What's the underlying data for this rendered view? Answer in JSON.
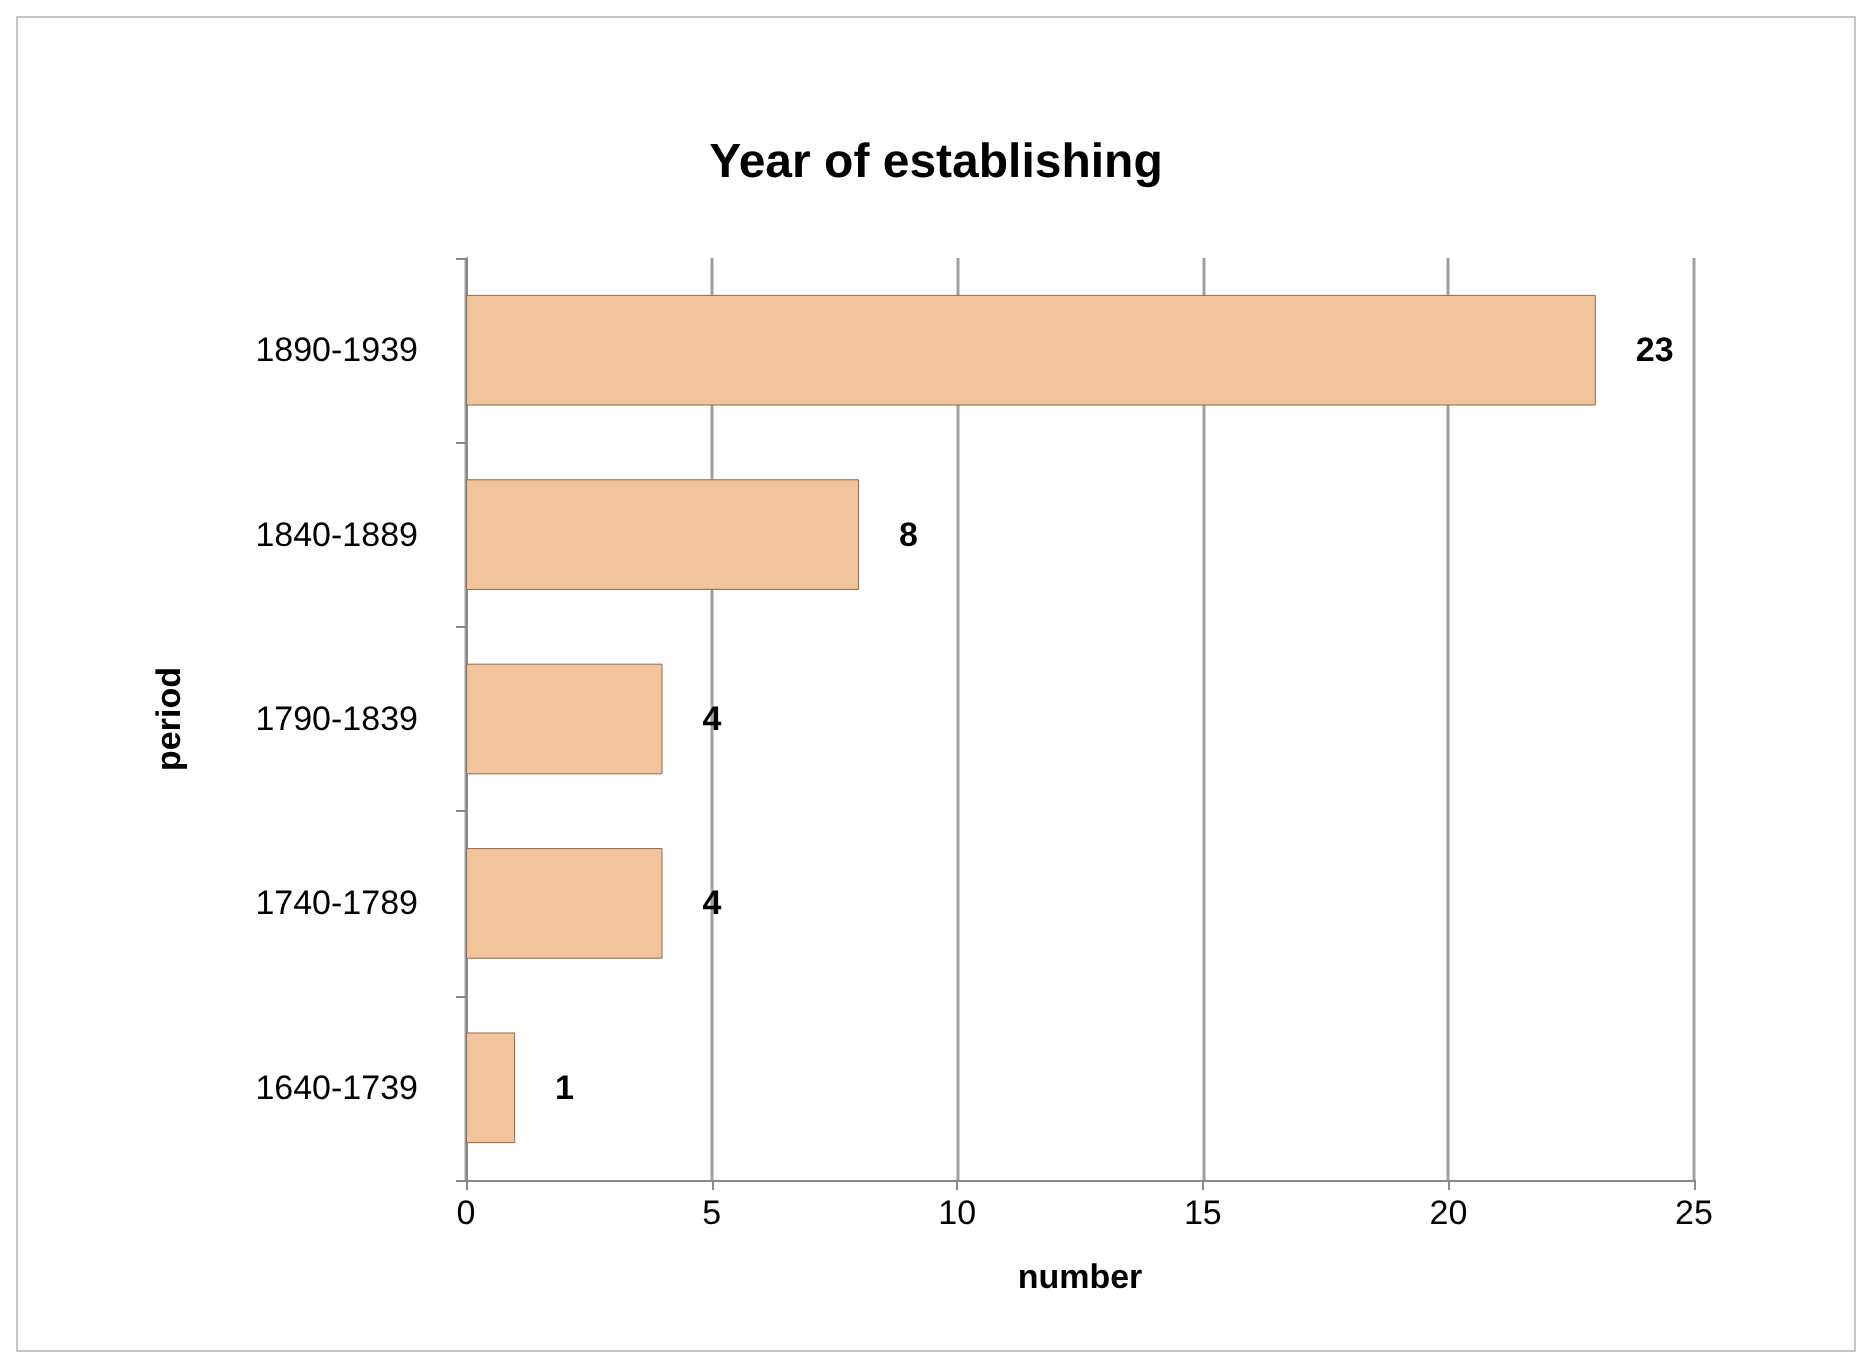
{
  "chart_data": {
    "type": "bar",
    "orientation": "horizontal",
    "title": "Year of establishing",
    "xlabel": "number",
    "ylabel": "period",
    "categories": [
      "1890-1939",
      "1840-1889",
      "1790-1839",
      "1740-1789",
      "1640-1739"
    ],
    "values": [
      23,
      8,
      4,
      4,
      1
    ],
    "color": "#f2c49b",
    "xlim": [
      0,
      25
    ],
    "xticks": [
      0,
      5,
      10,
      15,
      20,
      25
    ],
    "grid": "x",
    "data_labels": true
  }
}
